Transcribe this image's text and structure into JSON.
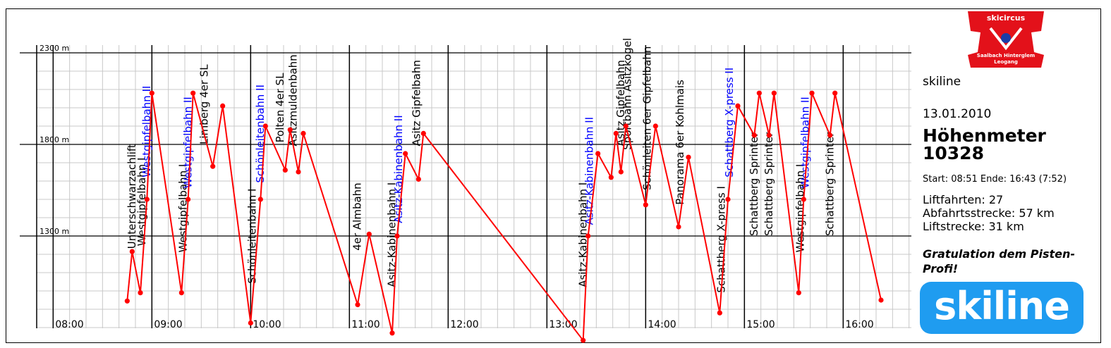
{
  "chart_data": {
    "type": "line",
    "title": "",
    "xlabel": "",
    "ylabel": "",
    "x_tick_labels": [
      "08:00",
      "09:00",
      "10:00",
      "11:00",
      "12:00",
      "13:00",
      "14:00",
      "15:00",
      "16:00"
    ],
    "y_tick_labels": [
      {
        "label": "2300 m",
        "value": 2300
      },
      {
        "label": "1800 m",
        "value": 1800
      },
      {
        "label": "1300 m",
        "value": 1300
      }
    ],
    "xlim": [
      "07:50",
      "16:48"
    ],
    "ylim": [
      780,
      2300
    ],
    "grid": true,
    "line_color": "#ff0000",
    "series": [
      {
        "points": [
          {
            "t": "08:45",
            "y": 945
          },
          {
            "t": "08:48",
            "y": 1215
          },
          {
            "t": "08:53",
            "y": 990
          },
          {
            "t": "08:57",
            "y": 1500
          },
          {
            "t": "09:00",
            "y": 2080
          },
          {
            "t": "09:18",
            "y": 990
          },
          {
            "t": "09:22",
            "y": 1500
          },
          {
            "t": "09:25",
            "y": 2080
          },
          {
            "t": "09:37",
            "y": 1680
          },
          {
            "t": "09:43",
            "y": 2010
          },
          {
            "t": "10:00",
            "y": 825
          },
          {
            "t": "10:06",
            "y": 1500
          },
          {
            "t": "10:09",
            "y": 1900
          },
          {
            "t": "10:21",
            "y": 1660
          },
          {
            "t": "10:24",
            "y": 1880
          },
          {
            "t": "10:29",
            "y": 1650
          },
          {
            "t": "10:32",
            "y": 1860
          },
          {
            "t": "11:05",
            "y": 925
          },
          {
            "t": "11:12",
            "y": 1310
          },
          {
            "t": "11:26",
            "y": 770
          },
          {
            "t": "11:29",
            "y": 1300
          },
          {
            "t": "11:34",
            "y": 1750
          },
          {
            "t": "11:42",
            "y": 1610
          },
          {
            "t": "11:45",
            "y": 1860
          },
          {
            "t": "13:22",
            "y": 730
          },
          {
            "t": "13:25",
            "y": 1300
          },
          {
            "t": "13:31",
            "y": 1750
          },
          {
            "t": "13:39",
            "y": 1620
          },
          {
            "t": "13:42",
            "y": 1860
          },
          {
            "t": "13:45",
            "y": 1650
          },
          {
            "t": "13:48",
            "y": 1900
          },
          {
            "t": "14:00",
            "y": 1470
          },
          {
            "t": "14:06",
            "y": 1900
          },
          {
            "t": "14:20",
            "y": 1350
          },
          {
            "t": "14:26",
            "y": 1730
          },
          {
            "t": "14:45",
            "y": 880
          },
          {
            "t": "14:50",
            "y": 1500
          },
          {
            "t": "14:56",
            "y": 2010
          },
          {
            "t": "15:06",
            "y": 1850
          },
          {
            "t": "15:09",
            "y": 2080
          },
          {
            "t": "15:15",
            "y": 1850
          },
          {
            "t": "15:18",
            "y": 2080
          },
          {
            "t": "15:33",
            "y": 990
          },
          {
            "t": "15:36",
            "y": 1500
          },
          {
            "t": "15:41",
            "y": 2080
          },
          {
            "t": "15:52",
            "y": 1850
          },
          {
            "t": "15:55",
            "y": 2080
          },
          {
            "t": "16:23",
            "y": 950
          }
        ]
      }
    ],
    "annotations": [
      {
        "text": "Unterschwarzachlift",
        "t": "08:50",
        "base": 1230,
        "color": "#000000"
      },
      {
        "text": "Westgipfelbahn I",
        "t": "08:56",
        "base": 1245,
        "color": "#000000"
      },
      {
        "text": "Westgipfelbahn II",
        "t": "08:59",
        "base": 1620,
        "color": "#0000ff"
      },
      {
        "text": "Westgipfelbahn I",
        "t": "09:21",
        "base": 1210,
        "color": "#000000"
      },
      {
        "text": "Westgipfelbahn II",
        "t": "09:24",
        "base": 1560,
        "color": "#0000ff"
      },
      {
        "text": "Limberg 4er SL",
        "t": "09:34",
        "base": 1800,
        "color": "#000000"
      },
      {
        "text": "Schönleitenbahn I",
        "t": "10:03",
        "base": 1040,
        "color": "#000000"
      },
      {
        "text": "Schönleitenbahn II",
        "t": "10:08",
        "base": 1590,
        "color": "#0000ff"
      },
      {
        "text": "Polten 4er SL",
        "t": "10:20",
        "base": 1810,
        "color": "#000000"
      },
      {
        "text": "Asitzmuldenbahn",
        "t": "10:28",
        "base": 1790,
        "color": "#000000"
      },
      {
        "text": "4er Almbahn",
        "t": "11:07",
        "base": 1220,
        "color": "#000000"
      },
      {
        "text": "Asitz-Kabinenbahn I",
        "t": "11:28",
        "base": 1020,
        "color": "#000000"
      },
      {
        "text": "Asitz-Kabinenbahn II",
        "t": "11:32",
        "base": 1370,
        "color": "#0000ff"
      },
      {
        "text": "Asitz Gipfelbahn",
        "t": "11:43",
        "base": 1790,
        "color": "#000000"
      },
      {
        "text": "Asitz-Kabinenbahn I",
        "t": "13:24",
        "base": 1020,
        "color": "#000000"
      },
      {
        "text": "Asitz-Kabinenbahn II",
        "t": "13:28",
        "base": 1360,
        "color": "#0000ff"
      },
      {
        "text": "Asitz Gipfelbahn",
        "t": "13:47",
        "base": 1790,
        "color": "#000000"
      },
      {
        "text": "Sportbahn Asitzkogel",
        "t": "13:51",
        "base": 1770,
        "color": "#000000"
      },
      {
        "text": "Schönleiten 6er Gipfelbahn",
        "t": "14:03",
        "base": 1550,
        "color": "#000000"
      },
      {
        "text": "Panorama 6er Kohlmais",
        "t": "14:23",
        "base": 1470,
        "color": "#000000"
      },
      {
        "text": "Schattberg X-press I",
        "t": "14:48",
        "base": 990,
        "color": "#000000"
      },
      {
        "text": "Schattberg X-press II",
        "t": "14:53",
        "base": 1620,
        "color": "#0000ff"
      },
      {
        "text": "Schattberg Sprinter",
        "t": "15:08",
        "base": 1300,
        "color": "#000000"
      },
      {
        "text": "Schattberg Sprinter",
        "t": "15:17",
        "base": 1300,
        "color": "#000000"
      },
      {
        "text": "Westgipfelbahn I",
        "t": "15:36",
        "base": 1210,
        "color": "#000000"
      },
      {
        "text": "Westgipfelbahn II",
        "t": "15:39",
        "base": 1560,
        "color": "#0000ff"
      },
      {
        "text": "Schattberg Sprinter",
        "t": "15:54",
        "base": 1300,
        "color": "#000000"
      }
    ]
  },
  "sidebar": {
    "badge_top": "skicircus",
    "badge_bottom1": "Saalbach Hinterglem",
    "badge_bottom2": "Leogang",
    "brand": "skiline",
    "date": "13.01.2010",
    "hoehenmeter_label": "Höhenmeter",
    "hoehenmeter_value": "10328",
    "times": "Start: 08:51 Ende: 16:43 (7:52)",
    "liftfahrten": "Liftfahrten: 27",
    "abfahrtsstrecke": "Abfahrtsstrecke: 57 km",
    "liftstrecke": "Liftstrecke: 31 km",
    "congrats": "Gratulation dem Pisten-Profi!",
    "logo_text": "skiline",
    "badge_color": "#e3111a",
    "logo_color": "#1f9cf0"
  }
}
